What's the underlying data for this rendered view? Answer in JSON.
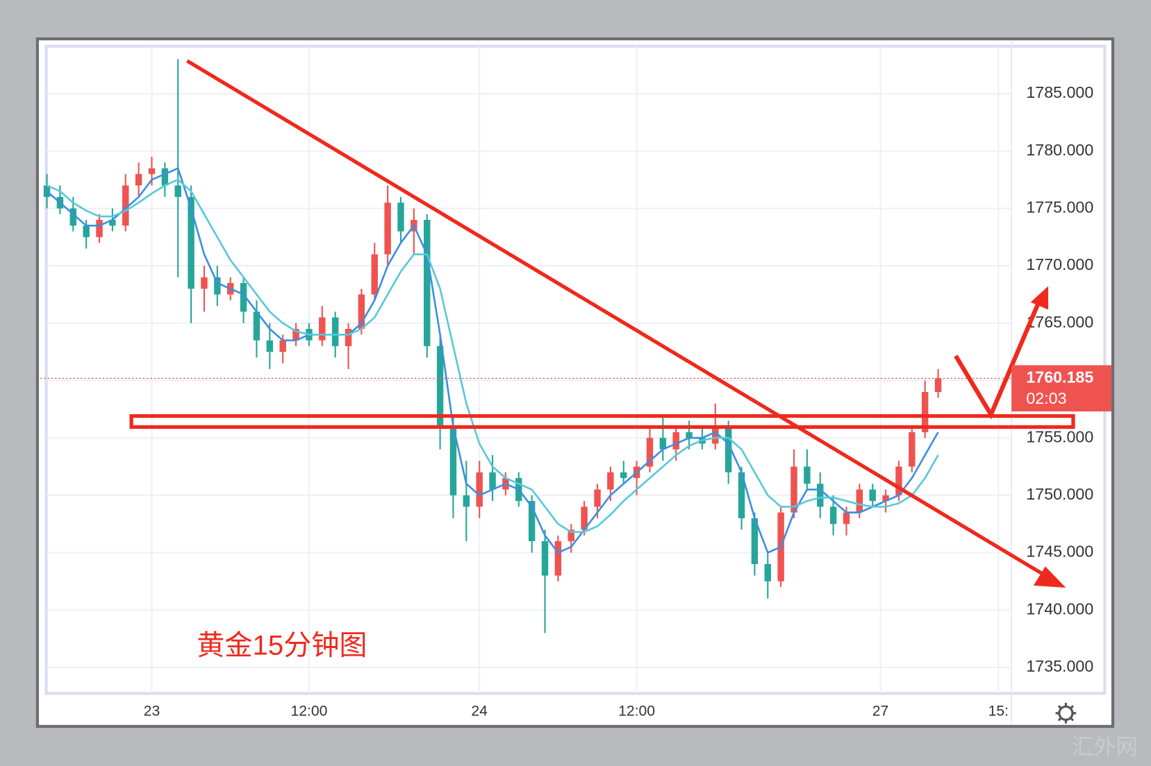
{
  "chart_data": {
    "type": "candlestick",
    "title": "黄金15分钟图",
    "watermark": "汇外网",
    "up_color": "#ef5350",
    "down_color": "#26a69a",
    "ylim": [
      1732.8,
      1789.2
    ],
    "yticks": [
      {
        "value": 1735,
        "label": "1735.000"
      },
      {
        "value": 1740,
        "label": "1740.000"
      },
      {
        "value": 1745,
        "label": "1745.000"
      },
      {
        "value": 1750,
        "label": "1750.000"
      },
      {
        "value": 1755,
        "label": "1755.000"
      },
      {
        "value": 1760,
        "label": "1760.000"
      },
      {
        "value": 1765,
        "label": "1765.000"
      },
      {
        "value": 1770,
        "label": "1770.000"
      },
      {
        "value": 1775,
        "label": "1775.000"
      },
      {
        "value": 1780,
        "label": "1780.000"
      },
      {
        "value": 1785,
        "label": "1785.000"
      }
    ],
    "xlim": [
      -0.5,
      73.6
    ],
    "xticks": [
      {
        "value": 8,
        "label": "23"
      },
      {
        "value": 20,
        "label": "12:00"
      },
      {
        "value": 33,
        "label": "24"
      },
      {
        "value": 45,
        "label": "12:00"
      },
      {
        "value": 63.6,
        "label": "27"
      },
      {
        "value": 72.6,
        "label": "15:"
      }
    ],
    "grid": true,
    "last_price": {
      "value": 1760.185,
      "label": "1760.185"
    },
    "countdown": "02:03",
    "ohlc": [
      [
        1777,
        1778,
        1775,
        1776
      ],
      [
        1776,
        1777,
        1774.5,
        1775
      ],
      [
        1775,
        1776,
        1773,
        1773.5
      ],
      [
        1773.5,
        1774,
        1771.5,
        1772.5
      ],
      [
        1772.5,
        1774.5,
        1772,
        1774
      ],
      [
        1774,
        1775,
        1773,
        1773.5
      ],
      [
        1773.5,
        1778,
        1773,
        1777
      ],
      [
        1777,
        1779,
        1776,
        1778
      ],
      [
        1778,
        1779.5,
        1777,
        1778.5
      ],
      [
        1778.5,
        1779,
        1776,
        1777
      ],
      [
        1777,
        1788,
        1769,
        1776
      ],
      [
        1776,
        1777,
        1765,
        1768
      ],
      [
        1768,
        1770,
        1766,
        1769
      ],
      [
        1769,
        1770,
        1766.5,
        1767.5
      ],
      [
        1767.5,
        1769,
        1767,
        1768.5
      ],
      [
        1768.5,
        1769,
        1765,
        1766
      ],
      [
        1766,
        1767,
        1762,
        1763.5
      ],
      [
        1763.5,
        1765,
        1761,
        1762.5
      ],
      [
        1762.5,
        1764,
        1761.5,
        1763.5
      ],
      [
        1763.5,
        1765,
        1763,
        1764.5
      ],
      [
        1764.5,
        1765,
        1763,
        1763.5
      ],
      [
        1763.5,
        1766.5,
        1763,
        1765.5
      ],
      [
        1765.5,
        1766,
        1762,
        1763
      ],
      [
        1763,
        1765,
        1761,
        1764.5
      ],
      [
        1764.5,
        1768,
        1764,
        1767.5
      ],
      [
        1767.5,
        1772,
        1767,
        1771
      ],
      [
        1771,
        1777,
        1770,
        1775.5
      ],
      [
        1775.5,
        1776,
        1772,
        1773
      ],
      [
        1773,
        1775,
        1771,
        1774
      ],
      [
        1774,
        1774.5,
        1762,
        1763
      ],
      [
        1763,
        1764,
        1754,
        1756
      ],
      [
        1756,
        1757,
        1748,
        1750
      ],
      [
        1750,
        1753,
        1746,
        1749
      ],
      [
        1749,
        1753,
        1748,
        1752
      ],
      [
        1752,
        1753.5,
        1749.5,
        1750.5
      ],
      [
        1750.5,
        1752,
        1750,
        1751.5
      ],
      [
        1751.5,
        1752,
        1749,
        1749.5
      ],
      [
        1749.5,
        1750,
        1745,
        1746
      ],
      [
        1746,
        1747,
        1738,
        1743
      ],
      [
        1743,
        1746.5,
        1742.5,
        1746
      ],
      [
        1746,
        1747.5,
        1745,
        1747
      ],
      [
        1747,
        1749.5,
        1746.5,
        1749
      ],
      [
        1749,
        1751,
        1748,
        1750.5
      ],
      [
        1750.5,
        1752.5,
        1749.5,
        1752
      ],
      [
        1752,
        1753,
        1751,
        1751.5
      ],
      [
        1751.5,
        1753,
        1750,
        1752.5
      ],
      [
        1752.5,
        1756,
        1752,
        1755
      ],
      [
        1755,
        1757,
        1753,
        1754
      ],
      [
        1754,
        1756,
        1753,
        1755.5
      ],
      [
        1755.5,
        1756.5,
        1754,
        1755
      ],
      [
        1755,
        1756,
        1754,
        1754.5
      ],
      [
        1754.5,
        1758,
        1754,
        1756
      ],
      [
        1756,
        1756.5,
        1751,
        1752
      ],
      [
        1752,
        1752.5,
        1747,
        1748
      ],
      [
        1748,
        1748.5,
        1743,
        1744
      ],
      [
        1744,
        1745,
        1741,
        1742.5
      ],
      [
        1742.5,
        1749,
        1742,
        1748.5
      ],
      [
        1748.5,
        1754,
        1748,
        1752.5
      ],
      [
        1752.5,
        1754,
        1750.5,
        1751
      ],
      [
        1751,
        1752,
        1748,
        1749
      ],
      [
        1749,
        1750,
        1746.5,
        1747.5
      ],
      [
        1747.5,
        1749,
        1746.5,
        1748.5
      ],
      [
        1748.5,
        1751,
        1748,
        1750.5
      ],
      [
        1750.5,
        1751,
        1749,
        1749.5
      ],
      [
        1749.5,
        1750.5,
        1748.5,
        1750
      ],
      [
        1750,
        1753,
        1749.5,
        1752.5
      ],
      [
        1752.5,
        1756,
        1752,
        1755.5
      ],
      [
        1755.5,
        1760,
        1755,
        1759
      ],
      [
        1759,
        1761,
        1758.5,
        1760.185
      ]
    ],
    "series": [
      {
        "color": "#3d8fe0",
        "values": [
          1776.5,
          1775.5,
          1774.5,
          1773.5,
          1773.5,
          1774,
          1775,
          1776,
          1777.5,
          1778,
          1778.5,
          1775,
          1771,
          1768.5,
          1768,
          1767.5,
          1766,
          1764.5,
          1763.5,
          1763.5,
          1764,
          1764,
          1764,
          1764,
          1765,
          1767,
          1770,
          1772,
          1773.5,
          1771,
          1764,
          1756,
          1751,
          1750,
          1750.5,
          1751,
          1750.5,
          1749,
          1746.5,
          1745,
          1745.5,
          1747,
          1748.5,
          1750,
          1751,
          1752,
          1753,
          1754,
          1754.5,
          1755,
          1755,
          1755.5,
          1754.5,
          1752,
          1748,
          1745,
          1745.5,
          1748.5,
          1750.5,
          1750.5,
          1749.5,
          1748.5,
          1748.5,
          1749,
          1749.5,
          1750,
          1751.5,
          1753.5,
          1755.5
        ]
      },
      {
        "color": "#57c9d9",
        "values": [
          1777,
          1776.5,
          1775.5,
          1774.8,
          1774.3,
          1774.3,
          1774.8,
          1775.5,
          1776.3,
          1777,
          1777.5,
          1776.5,
          1774.5,
          1772.5,
          1770.5,
          1769,
          1767.5,
          1766,
          1765,
          1764.3,
          1764,
          1764,
          1764,
          1764,
          1764.5,
          1765.5,
          1767.5,
          1769.5,
          1771,
          1771,
          1768,
          1763,
          1758,
          1754.5,
          1752.5,
          1751.5,
          1751,
          1750.5,
          1749,
          1747.5,
          1746.8,
          1746.8,
          1747.3,
          1748.3,
          1749.5,
          1750.5,
          1751.5,
          1752.5,
          1753.5,
          1754.3,
          1754.8,
          1755,
          1755,
          1754,
          1752,
          1750,
          1749,
          1749,
          1749.5,
          1749.8,
          1749.8,
          1749.5,
          1749.2,
          1749,
          1749,
          1749.3,
          1750,
          1751.5,
          1753.5
        ]
      }
    ]
  }
}
